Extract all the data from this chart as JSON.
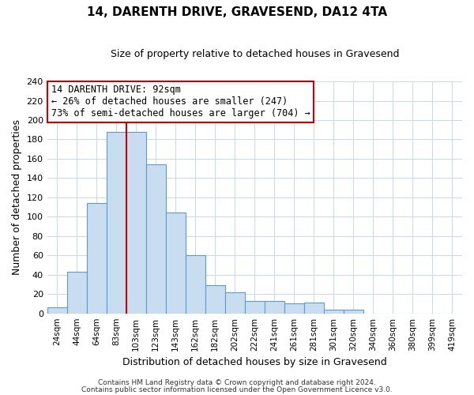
{
  "title": "14, DARENTH DRIVE, GRAVESEND, DA12 4TA",
  "subtitle": "Size of property relative to detached houses in Gravesend",
  "xlabel": "Distribution of detached houses by size in Gravesend",
  "ylabel": "Number of detached properties",
  "bar_labels": [
    "24sqm",
    "44sqm",
    "64sqm",
    "83sqm",
    "103sqm",
    "123sqm",
    "143sqm",
    "162sqm",
    "182sqm",
    "202sqm",
    "222sqm",
    "241sqm",
    "261sqm",
    "281sqm",
    "301sqm",
    "320sqm",
    "340sqm",
    "360sqm",
    "380sqm",
    "399sqm",
    "419sqm"
  ],
  "bar_values": [
    6,
    43,
    114,
    188,
    188,
    154,
    104,
    60,
    29,
    22,
    13,
    13,
    10,
    11,
    4,
    4,
    0,
    0,
    0,
    0,
    0
  ],
  "bar_color": "#c9ddf0",
  "bar_edge_color": "#5b9bd5",
  "annotation_title": "14 DARENTH DRIVE: 92sqm",
  "annotation_line1": "← 26% of detached houses are smaller (247)",
  "annotation_line2": "73% of semi-detached houses are larger (704) →",
  "annotation_box_color": "#ffffff",
  "annotation_box_edge": "#cc0000",
  "red_line_index": 3.5,
  "ylim": [
    0,
    240
  ],
  "yticks": [
    0,
    20,
    40,
    60,
    80,
    100,
    120,
    140,
    160,
    180,
    200,
    220,
    240
  ],
  "footer1": "Contains HM Land Registry data © Crown copyright and database right 2024.",
  "footer2": "Contains public sector information licensed under the Open Government Licence v3.0."
}
